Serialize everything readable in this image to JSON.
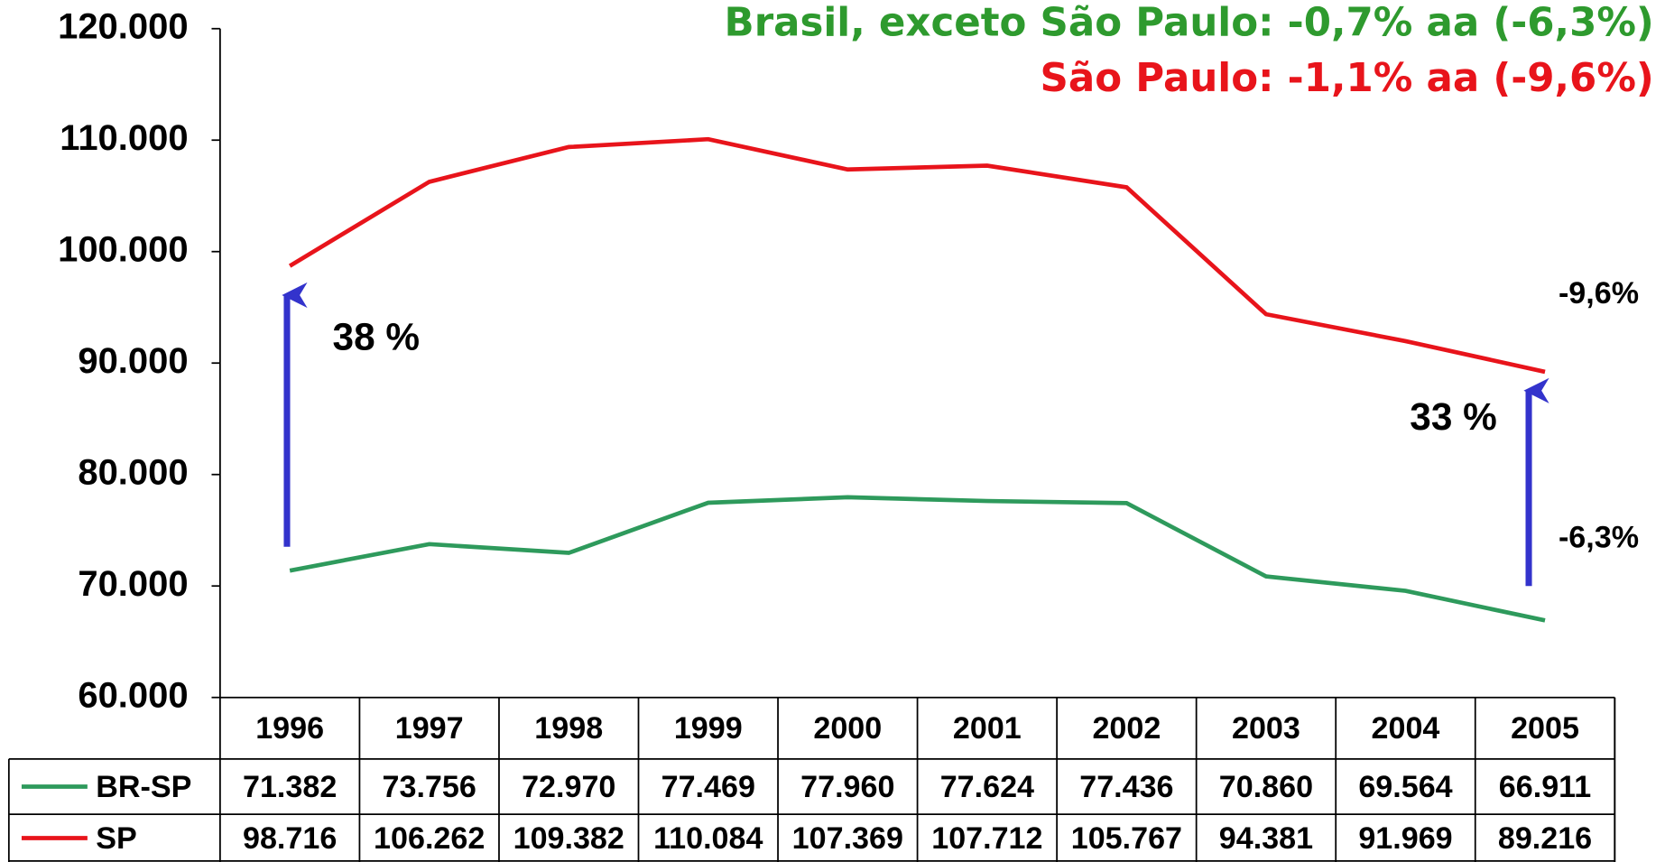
{
  "chart_data": {
    "type": "line",
    "categories": [
      "1996",
      "1997",
      "1998",
      "1999",
      "2000",
      "2001",
      "2002",
      "2003",
      "2004",
      "2005"
    ],
    "series": [
      {
        "name": "BR-SP",
        "color": "#2e9a5c",
        "values": [
          71382,
          73756,
          72970,
          77469,
          77960,
          77624,
          77436,
          70860,
          69564,
          66911
        ],
        "value_labels": [
          "71.382",
          "73.756",
          "72.970",
          "77.469",
          "77.960",
          "77.624",
          "77.436",
          "70.860",
          "69.564",
          "66.911"
        ]
      },
      {
        "name": "SP",
        "color": "#e8141b",
        "values": [
          98716,
          106262,
          109382,
          110084,
          107369,
          107712,
          105767,
          94381,
          91969,
          89216
        ],
        "value_labels": [
          "98.716",
          "106.262",
          "109.382",
          "110.084",
          "107.369",
          "107.712",
          "105.767",
          "94.381",
          "91.969",
          "89.216"
        ]
      }
    ],
    "ylim": [
      60000,
      120000
    ],
    "yticks": [
      {
        "value": 60000,
        "label": "60.000"
      },
      {
        "value": 70000,
        "label": "70.000"
      },
      {
        "value": 80000,
        "label": "80.000"
      },
      {
        "value": 90000,
        "label": "90.000"
      },
      {
        "value": 100000,
        "label": "100.000"
      },
      {
        "value": 110000,
        "label": "110.000"
      },
      {
        "value": 120000,
        "label": "120.000"
      }
    ],
    "annotations": [
      "Brasil, exceto São Paulo:   -0,7% aa (-6,3%)",
      "São Paulo:  -1,1% aa (-9,6%)",
      "38 %",
      "33 %",
      "-9,6%",
      "-6,3%"
    ]
  }
}
